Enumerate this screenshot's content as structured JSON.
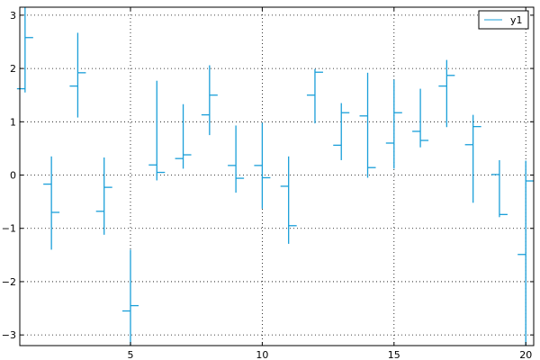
{
  "chart_data": {
    "type": "ohlc",
    "title": "",
    "xlabel": "",
    "ylabel": "",
    "xlim": [
      0.8,
      20.3
    ],
    "ylim": [
      -3.2,
      3.15
    ],
    "xticks": [
      5,
      10,
      15,
      20
    ],
    "yticks": [
      -3,
      -2,
      -1,
      0,
      1,
      2,
      3
    ],
    "grid": true,
    "legend_position": "top-right",
    "series_color": "#1a9fd9",
    "series": [
      {
        "name": "y1",
        "points": [
          {
            "x": 1,
            "open": 1.62,
            "high": 3.15,
            "low": 1.55,
            "close": 2.58
          },
          {
            "x": 2,
            "open": -0.17,
            "high": 0.35,
            "low": -1.4,
            "close": -0.7
          },
          {
            "x": 3,
            "open": 1.67,
            "high": 2.67,
            "low": 1.08,
            "close": 1.92
          },
          {
            "x": 4,
            "open": -0.68,
            "high": 0.33,
            "low": -1.12,
            "close": -0.23
          },
          {
            "x": 5,
            "open": -2.55,
            "high": -1.4,
            "low": -3.2,
            "close": -2.45
          },
          {
            "x": 6,
            "open": 0.19,
            "high": 1.77,
            "low": -0.1,
            "close": 0.05
          },
          {
            "x": 7,
            "open": 0.31,
            "high": 1.33,
            "low": 0.12,
            "close": 0.38
          },
          {
            "x": 8,
            "open": 1.13,
            "high": 2.06,
            "low": 0.75,
            "close": 1.5
          },
          {
            "x": 9,
            "open": 0.18,
            "high": 0.93,
            "low": -0.33,
            "close": -0.06
          },
          {
            "x": 10,
            "open": 0.18,
            "high": 0.98,
            "low": -0.63,
            "close": -0.05
          },
          {
            "x": 11,
            "open": -0.21,
            "high": 0.35,
            "low": -1.29,
            "close": -0.95
          },
          {
            "x": 12,
            "open": 1.5,
            "high": 1.99,
            "low": 0.97,
            "close": 1.93
          },
          {
            "x": 13,
            "open": 0.56,
            "high": 1.35,
            "low": 0.28,
            "close": 1.17
          },
          {
            "x": 14,
            "open": 1.11,
            "high": 1.92,
            "low": -0.05,
            "close": 0.14
          },
          {
            "x": 15,
            "open": 0.6,
            "high": 1.79,
            "low": 0.12,
            "close": 1.17
          },
          {
            "x": 16,
            "open": 0.82,
            "high": 1.62,
            "low": 0.52,
            "close": 0.65
          },
          {
            "x": 17,
            "open": 1.67,
            "high": 2.16,
            "low": 0.9,
            "close": 1.87
          },
          {
            "x": 18,
            "open": 0.57,
            "high": 1.13,
            "low": -0.52,
            "close": 0.91
          },
          {
            "x": 19,
            "open": 0.01,
            "high": 0.28,
            "low": -0.79,
            "close": -0.74
          },
          {
            "x": 20,
            "open": -1.49,
            "high": 0.27,
            "low": -3.2,
            "close": -0.11
          }
        ]
      }
    ]
  }
}
